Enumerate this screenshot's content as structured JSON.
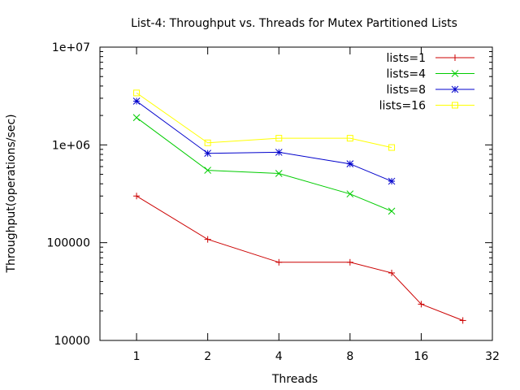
{
  "chart_data": {
    "type": "line",
    "title": "List-4: Throughput vs. Threads for Mutex Partitioned Lists",
    "xlabel": "Threads",
    "ylabel": "Throughput(operations/sec)",
    "x_scale": "log2",
    "y_scale": "log10",
    "xlim": [
      0.7,
      32
    ],
    "ylim": [
      10000,
      10000000
    ],
    "x_ticks": [
      {
        "value": 1,
        "label": "1"
      },
      {
        "value": 2,
        "label": "2"
      },
      {
        "value": 4,
        "label": "4"
      },
      {
        "value": 8,
        "label": "8"
      },
      {
        "value": 16,
        "label": "16"
      },
      {
        "value": 32,
        "label": "32"
      }
    ],
    "y_ticks": [
      {
        "value": 10000,
        "label": "10000"
      },
      {
        "value": 100000,
        "label": "100000"
      },
      {
        "value": 1000000,
        "label": "1e+06"
      },
      {
        "value": 10000000,
        "label": "1e+07"
      }
    ],
    "grid": false,
    "legend_position": "top-right",
    "series": [
      {
        "name": "lists=1",
        "color": "#cc0000",
        "marker": "plus",
        "x": [
          1,
          2,
          4,
          8,
          12,
          16,
          24
        ],
        "y": [
          300000,
          108000,
          63000,
          63000,
          49000,
          23500,
          16000
        ]
      },
      {
        "name": "lists=4",
        "color": "#00cc00",
        "marker": "cross",
        "x": [
          1,
          2,
          4,
          8,
          12
        ],
        "y": [
          1900000,
          550000,
          510000,
          315000,
          210000
        ]
      },
      {
        "name": "lists=8",
        "color": "#0000cc",
        "marker": "star",
        "x": [
          1,
          2,
          4,
          8,
          12
        ],
        "y": [
          2800000,
          820000,
          840000,
          640000,
          425000
        ]
      },
      {
        "name": "lists=16",
        "color": "#ffff00",
        "marker": "square",
        "x": [
          1,
          2,
          4,
          8,
          12
        ],
        "y": [
          3400000,
          1050000,
          1170000,
          1170000,
          940000
        ]
      }
    ]
  }
}
